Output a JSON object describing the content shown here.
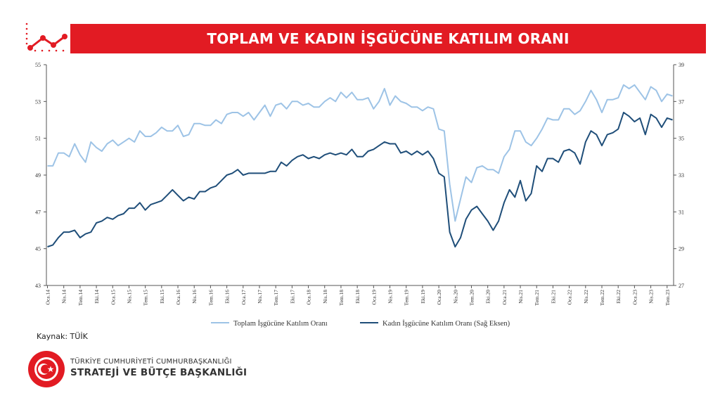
{
  "title": "TOPLAM VE KADIN İŞGÜCÜNE KATILIM ORANI",
  "source_label": "Kaynak: TÜİK",
  "org": {
    "line1": "TÜRKİYE CUMHURİYETİ CUMHURBAŞKANLIĞI",
    "line2": "STRATEJİ VE BÜTÇE BAŞKANLIĞI",
    "seal_text": "T.C. CUMHURBAŞKANLIĞI STRATEJİ VE BÜTÇE BAŞKANLIĞI"
  },
  "colors": {
    "banner": "#e21b23",
    "total_series": "#9dc3e6",
    "female_series": "#1f4e79",
    "axis": "#555555"
  },
  "chart_data": {
    "type": "line",
    "title": "",
    "xlabel": "",
    "ylabel": "",
    "ylim": [
      43,
      55
    ],
    "y2lim": [
      27,
      39
    ],
    "yticks": [
      43,
      45,
      47,
      49,
      51,
      53,
      55
    ],
    "y2ticks": [
      27,
      29,
      31,
      33,
      35,
      37,
      39
    ],
    "legend_position": "bottom",
    "grid": false,
    "x_tick_labels": [
      "Oca.14",
      "Nis.14",
      "Tem.14",
      "Eki.14",
      "Oca.15",
      "Nis.15",
      "Tem.15",
      "Eki.15",
      "Oca.16",
      "Nis.16",
      "Tem.16",
      "Eki.16",
      "Oca.17",
      "Nis.17",
      "Tem.17",
      "Eki.17",
      "Oca.18",
      "Nis.18",
      "Tem.18",
      "Eki.18",
      "Oca.19",
      "Nis.19",
      "Tem.19",
      "Eki.19",
      "Oca.20",
      "Nis.20",
      "Tem.20",
      "Eki.20",
      "Oca.21",
      "Nis.21",
      "Tem.21",
      "Eki.21",
      "Oca.22",
      "Nis.22",
      "Tem.22",
      "Eki.22",
      "Oca.23",
      "Nis.23",
      "Tem.23"
    ],
    "series": [
      {
        "name": "Toplam İşgücüne Katılım Oranı",
        "axis": "left",
        "values": [
          49.5,
          49.5,
          50.2,
          50.2,
          50.0,
          50.7,
          50.1,
          49.7,
          50.8,
          50.5,
          50.3,
          50.7,
          50.9,
          50.6,
          50.8,
          51.0,
          50.8,
          51.4,
          51.1,
          51.1,
          51.3,
          51.6,
          51.4,
          51.4,
          51.7,
          51.1,
          51.2,
          51.8,
          51.8,
          51.7,
          51.7,
          52.0,
          51.8,
          52.3,
          52.4,
          52.4,
          52.2,
          52.4,
          52.0,
          52.4,
          52.8,
          52.2,
          52.8,
          52.9,
          52.6,
          53.0,
          53.0,
          52.8,
          52.9,
          52.7,
          52.7,
          53.0,
          53.2,
          53.0,
          53.5,
          53.2,
          53.5,
          53.1,
          53.1,
          53.2,
          52.6,
          53.0,
          53.7,
          52.8,
          53.3,
          53.0,
          52.9,
          52.7,
          52.7,
          52.5,
          52.7,
          52.6,
          51.5,
          51.4,
          48.5,
          46.5,
          47.7,
          48.9,
          48.6,
          49.4,
          49.5,
          49.3,
          49.3,
          49.1,
          50.0,
          50.4,
          51.4,
          51.4,
          50.8,
          50.6,
          51.0,
          51.5,
          52.1,
          52.0,
          52.0,
          52.6,
          52.6,
          52.3,
          52.5,
          53.0,
          53.6,
          53.1,
          52.4,
          53.1,
          53.1,
          53.2,
          53.9,
          53.7,
          53.9,
          53.5,
          53.1,
          53.8,
          53.6,
          53.0,
          53.4,
          53.3
        ]
      },
      {
        "name": "Kadın İşgücüne Katılım Oranı (Sağ Eksen)",
        "axis": "right",
        "values": [
          29.1,
          29.2,
          29.6,
          29.9,
          29.9,
          30.0,
          29.6,
          29.8,
          29.9,
          30.4,
          30.5,
          30.7,
          30.6,
          30.8,
          30.9,
          31.2,
          31.2,
          31.5,
          31.1,
          31.4,
          31.5,
          31.6,
          31.9,
          32.2,
          31.9,
          31.6,
          31.8,
          31.7,
          32.1,
          32.1,
          32.3,
          32.4,
          32.7,
          33.0,
          33.1,
          33.3,
          33.0,
          33.1,
          33.1,
          33.1,
          33.1,
          33.2,
          33.2,
          33.7,
          33.5,
          33.8,
          34.0,
          34.1,
          33.9,
          34.0,
          33.9,
          34.1,
          34.2,
          34.1,
          34.2,
          34.1,
          34.4,
          34.0,
          34.0,
          34.3,
          34.4,
          34.6,
          34.8,
          34.7,
          34.7,
          34.2,
          34.3,
          34.1,
          34.3,
          34.1,
          34.3,
          33.9,
          33.1,
          32.9,
          29.9,
          29.1,
          29.6,
          30.6,
          31.1,
          31.3,
          30.9,
          30.5,
          30.0,
          30.5,
          31.5,
          32.2,
          31.8,
          32.7,
          31.6,
          32.0,
          33.5,
          33.2,
          33.9,
          33.9,
          33.7,
          34.3,
          34.4,
          34.2,
          33.6,
          34.8,
          35.4,
          35.2,
          34.6,
          35.2,
          35.3,
          35.5,
          36.4,
          36.2,
          35.9,
          36.1,
          35.2,
          36.3,
          36.1,
          35.6,
          36.1,
          36.0
        ]
      }
    ]
  }
}
